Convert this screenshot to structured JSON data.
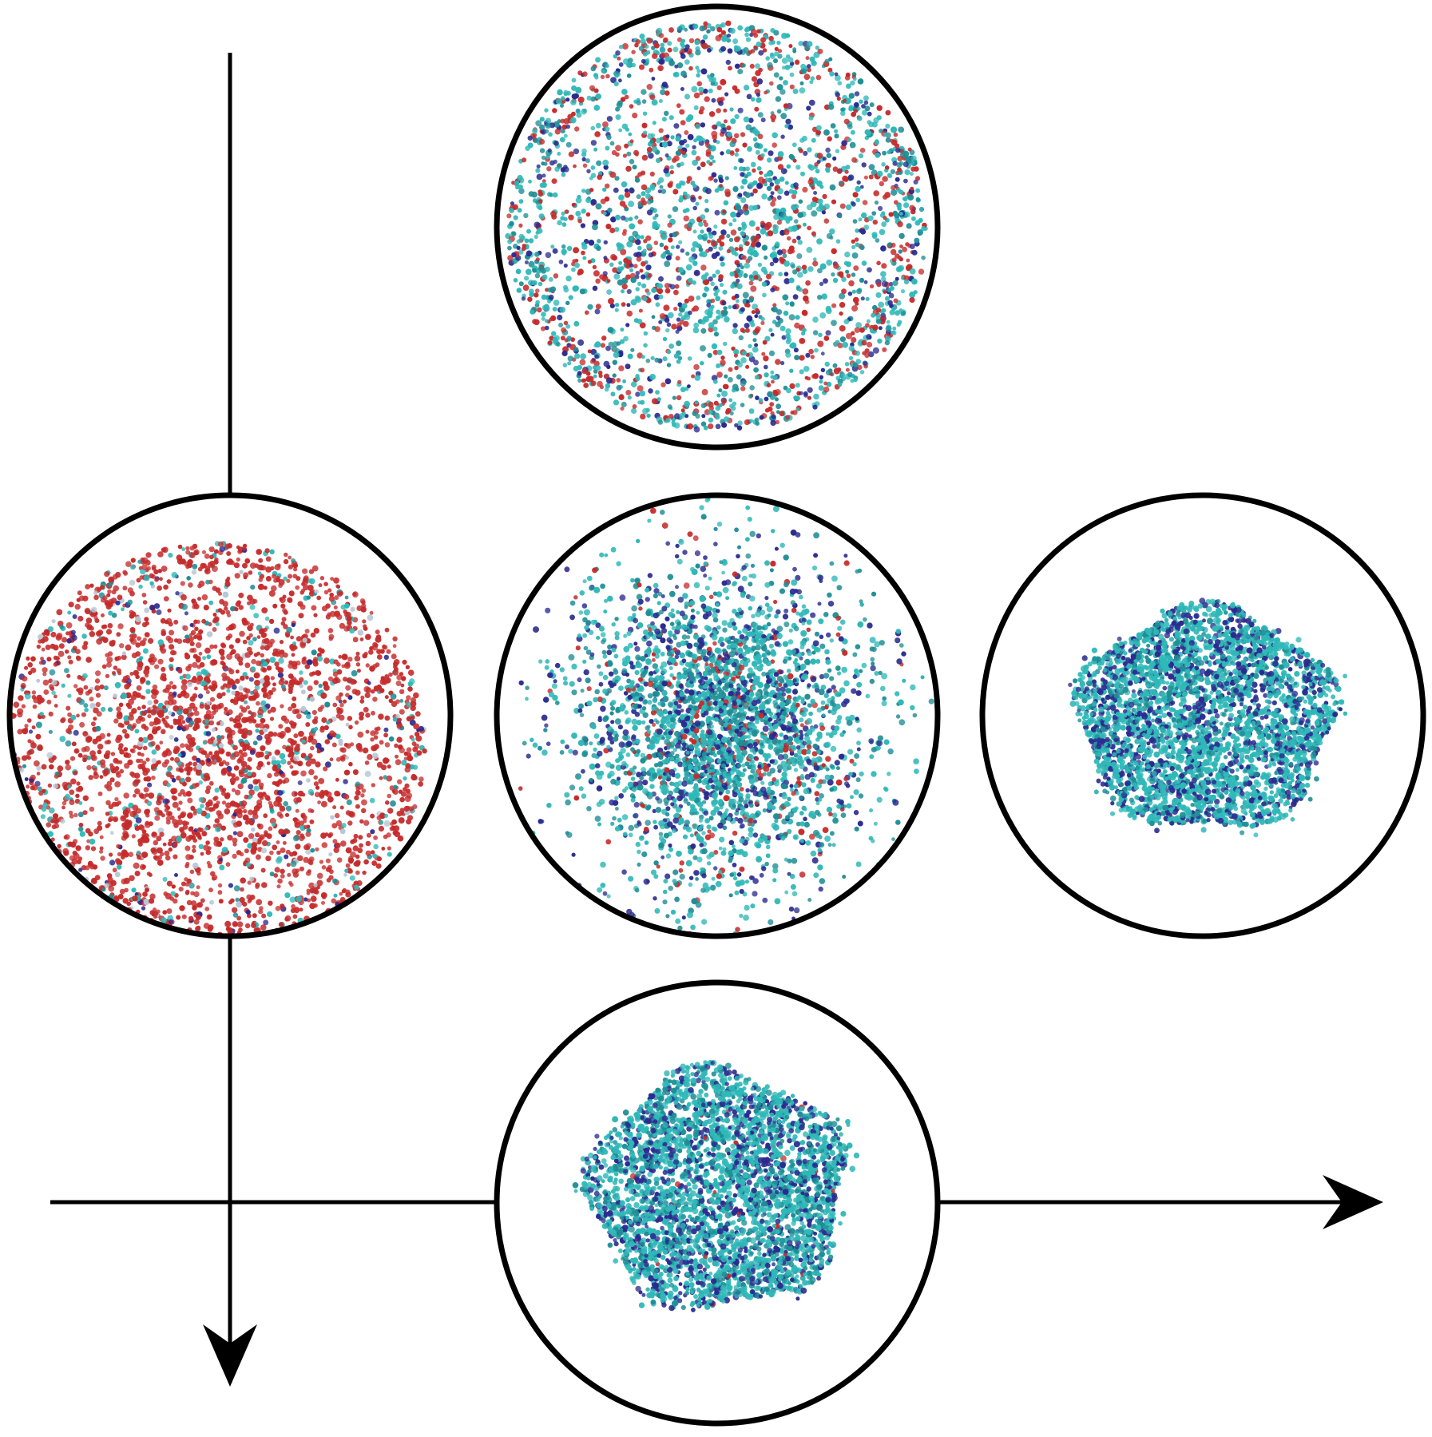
{
  "figure": {
    "background": "#ffffff",
    "line_color": "#000000",
    "palette": {
      "red": "#c62b2b",
      "cyan": "#2fb8b8",
      "teal": "#1f8e96",
      "navy": "#2a2a8f",
      "pale": "#b7c7d6"
    },
    "axes": [
      {
        "id": "vertical-axis",
        "direction": "down",
        "arrow": true
      },
      {
        "id": "horizontal-axis",
        "direction": "right",
        "arrow": true
      }
    ],
    "panels": [
      {
        "id": "top",
        "state": "diffuse mixed",
        "dominant_color": "cyan",
        "mix": {
          "red": 0.3,
          "cyan": 0.4,
          "teal": 0.15,
          "navy": 0.15
        }
      },
      {
        "id": "left",
        "state": "diffuse red-rich",
        "dominant_color": "red",
        "mix": {
          "red": 0.8,
          "cyan": 0.08,
          "teal": 0.04,
          "navy": 0.04,
          "pale": 0.04
        }
      },
      {
        "id": "center",
        "state": "partially condensed",
        "dominant_color": "teal",
        "mix": {
          "red": 0.08,
          "cyan": 0.45,
          "teal": 0.25,
          "navy": 0.22
        }
      },
      {
        "id": "right",
        "state": "compact cluster",
        "dominant_color": "cyan",
        "mix": {
          "cyan": 0.6,
          "teal": 0.15,
          "navy": 0.25
        }
      },
      {
        "id": "bottom",
        "state": "compact cluster",
        "dominant_color": "cyan",
        "mix": {
          "cyan": 0.55,
          "teal": 0.2,
          "navy": 0.24,
          "red": 0.01
        }
      }
    ]
  }
}
